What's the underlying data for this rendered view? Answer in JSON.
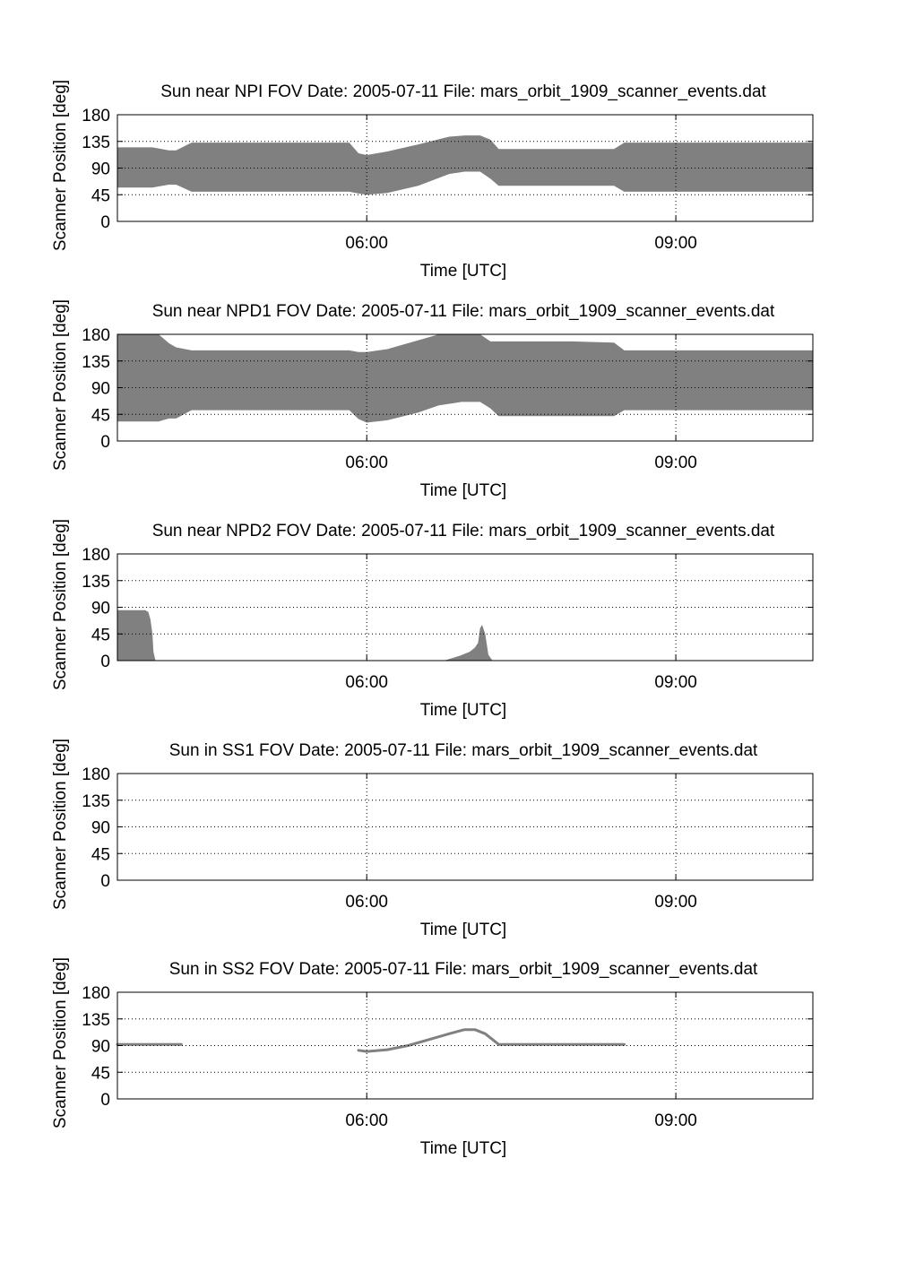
{
  "chart_data": [
    {
      "type": "area",
      "title": "Sun near NPI FOV    Date: 2005-07-11    File: mars_orbit_1909_scanner_events.dat",
      "xlabel": "Time [UTC]",
      "ylabel": "Scanner Position [deg]",
      "xticks": [
        "06:00",
        "09:00"
      ],
      "yticks": [
        0,
        45,
        90,
        135,
        180
      ],
      "ylim": [
        0,
        180
      ],
      "xlim_hours": [
        3.58,
        10.33
      ],
      "grid": true,
      "color": "#808080",
      "series": [
        {
          "x": [
            3.58,
            3.72,
            3.92,
            4.08,
            4.15,
            4.3,
            5.83,
            5.92,
            6.0,
            6.2,
            6.5,
            6.8,
            6.95,
            7.1,
            7.2,
            7.28,
            7.4,
            8.0,
            8.4,
            8.5,
            10.33
          ],
          "upper": [
            125,
            125,
            125,
            120,
            120,
            133,
            133,
            115,
            112,
            118,
            130,
            143,
            145,
            145,
            138,
            122,
            122,
            122,
            122,
            133,
            133
          ],
          "lower": [
            57,
            57,
            57,
            62,
            62,
            50,
            50,
            47,
            45,
            48,
            60,
            80,
            84,
            84,
            72,
            60,
            60,
            60,
            60,
            50,
            50
          ]
        }
      ]
    },
    {
      "type": "area",
      "title": "Sun near NPD1 FOV    Date: 2005-07-11    File: mars_orbit_1909_scanner_events.dat",
      "xlabel": "Time [UTC]",
      "ylabel": "Scanner Position [deg]",
      "xticks": [
        "06:00",
        "09:00"
      ],
      "yticks": [
        0,
        45,
        90,
        135,
        180
      ],
      "ylim": [
        0,
        180
      ],
      "xlim_hours": [
        3.58,
        10.33
      ],
      "grid": true,
      "color": "#808080",
      "series": [
        {
          "x": [
            3.58,
            3.88,
            3.98,
            4.08,
            4.15,
            4.3,
            5.7,
            5.83,
            5.92,
            6.0,
            6.2,
            6.5,
            6.7,
            6.92,
            7.1,
            7.2,
            7.28,
            7.4,
            8.0,
            8.4,
            8.5,
            10.33
          ],
          "upper": [
            180,
            180,
            180,
            165,
            158,
            153,
            153,
            153,
            150,
            150,
            155,
            170,
            180,
            180,
            180,
            168,
            168,
            168,
            168,
            166,
            153,
            153
          ],
          "lower": [
            33,
            33,
            33,
            38,
            38,
            52,
            52,
            52,
            37,
            31,
            35,
            48,
            60,
            66,
            66,
            55,
            42,
            42,
            42,
            42,
            52,
            52
          ]
        }
      ]
    },
    {
      "type": "area",
      "title": "Sun near NPD2 FOV    Date: 2005-07-11    File: mars_orbit_1909_scanner_events.dat",
      "xlabel": "Time [UTC]",
      "ylabel": "Scanner Position [deg]",
      "xticks": [
        "06:00",
        "09:00"
      ],
      "yticks": [
        0,
        45,
        90,
        135,
        180
      ],
      "ylim": [
        0,
        180
      ],
      "xlim_hours": [
        3.58,
        10.33
      ],
      "grid": true,
      "color": "#808080",
      "series": [
        {
          "x": [
            3.58,
            3.85,
            3.88,
            3.9,
            3.92,
            3.93,
            3.95,
            6.75,
            6.9,
            7.0,
            7.05,
            7.08,
            7.1,
            7.12,
            7.15,
            7.18,
            7.22
          ],
          "upper": [
            85,
            85,
            82,
            70,
            45,
            15,
            0,
            0,
            8,
            15,
            22,
            30,
            55,
            60,
            45,
            10,
            0
          ],
          "lower": [
            0,
            0,
            0,
            0,
            0,
            0,
            0,
            0,
            0,
            0,
            0,
            0,
            0,
            0,
            0,
            0,
            0
          ]
        }
      ]
    },
    {
      "type": "area",
      "title": "Sun in SS1 FOV    Date: 2005-07-11    File: mars_orbit_1909_scanner_events.dat",
      "xlabel": "Time [UTC]",
      "ylabel": "Scanner Position [deg]",
      "xticks": [
        "06:00",
        "09:00"
      ],
      "yticks": [
        0,
        45,
        90,
        135,
        180
      ],
      "ylim": [
        0,
        180
      ],
      "xlim_hours": [
        3.58,
        10.33
      ],
      "grid": true,
      "color": "#808080",
      "series": []
    },
    {
      "type": "line",
      "title": "Sun in SS2 FOV    Date: 2005-07-11    File: mars_orbit_1909_scanner_events.dat",
      "xlabel": "Time [UTC]",
      "ylabel": "Scanner Position [deg]",
      "xticks": [
        "06:00",
        "09:00"
      ],
      "yticks": [
        0,
        45,
        90,
        135,
        180
      ],
      "ylim": [
        0,
        180
      ],
      "xlim_hours": [
        3.58,
        10.33
      ],
      "grid": true,
      "color": "#808080",
      "series": [
        {
          "x": [
            3.58,
            3.95,
            4.2
          ],
          "y": [
            92,
            92,
            92
          ]
        },
        {
          "x": [
            5.92,
            6.0,
            6.2,
            6.4,
            6.6,
            6.8,
            6.95,
            7.05,
            7.15,
            7.28,
            7.4,
            8.0,
            8.5
          ],
          "y": [
            82,
            80,
            83,
            90,
            100,
            110,
            117,
            117,
            110,
            92,
            92,
            92,
            92
          ]
        }
      ]
    }
  ]
}
